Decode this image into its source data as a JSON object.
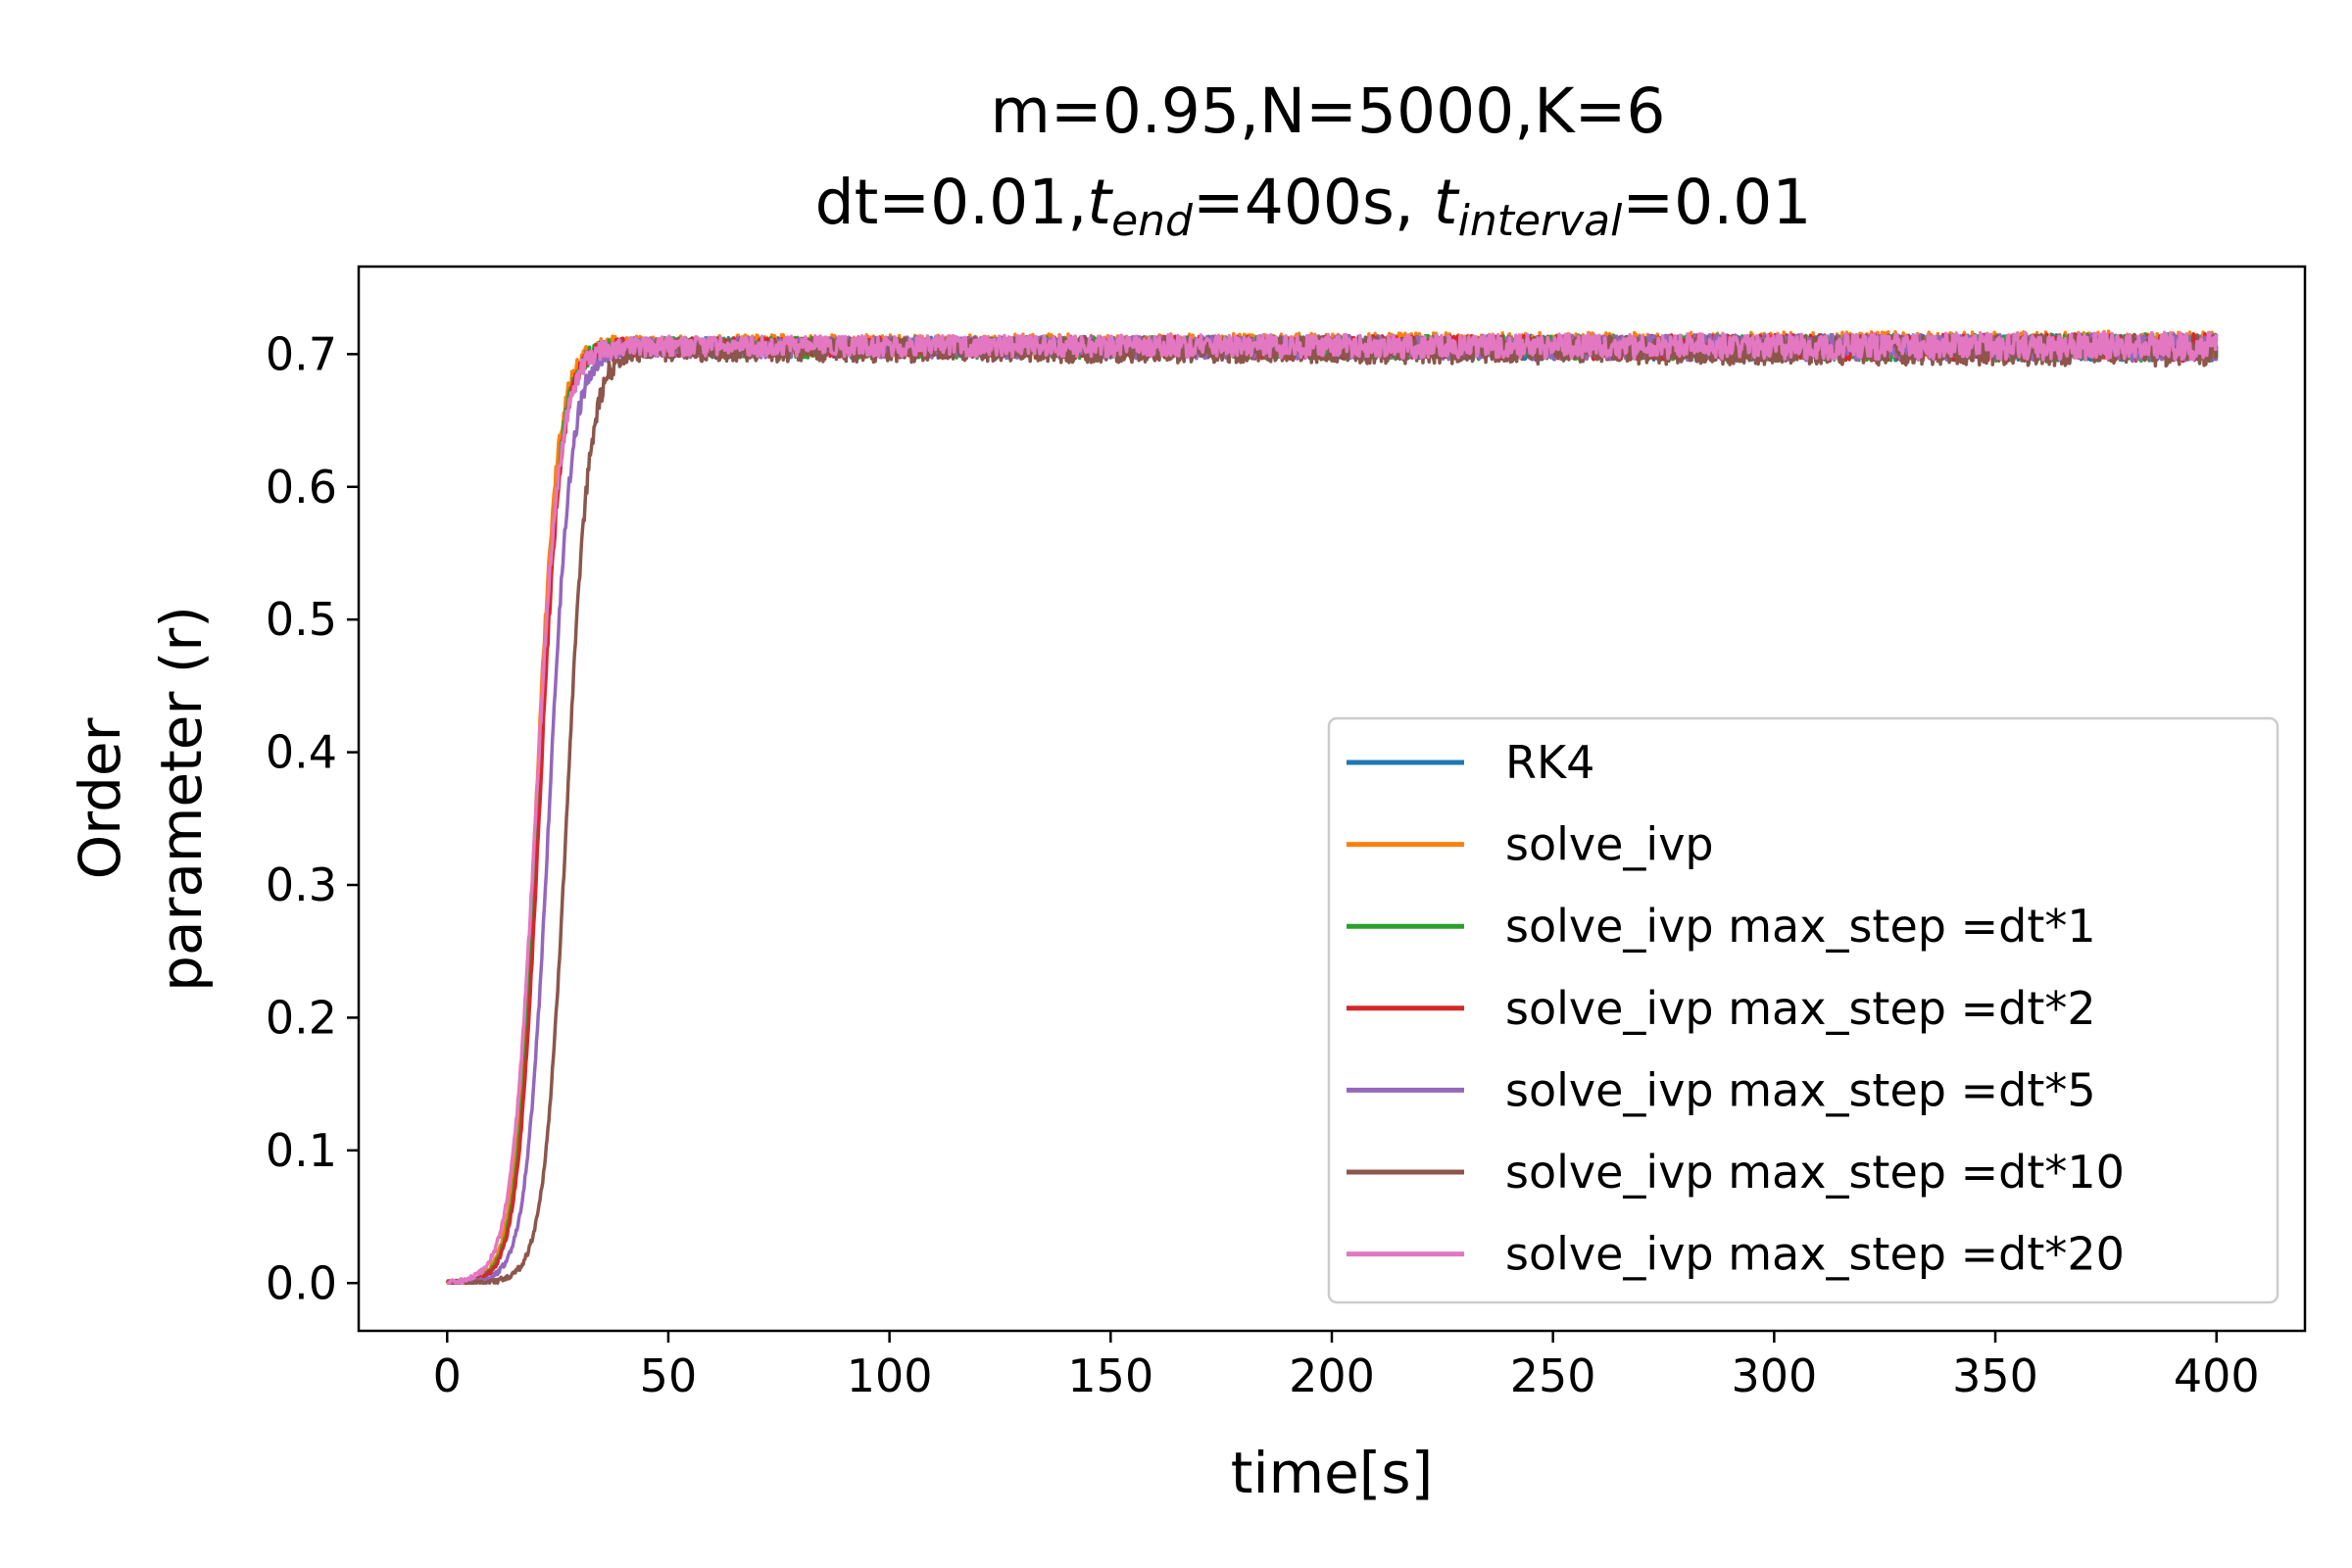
{
  "chart_data": {
    "type": "line",
    "title_line1": "m=0.95,N=5000,K=6",
    "title_line2": {
      "dt": "dt=0.01,",
      "t_end_var": "t",
      "t_end_sub": "end",
      "t_end_val": "=400s, ",
      "t_interval_var": "t",
      "t_interval_sub": "interval",
      "t_interval_val": "=0.01"
    },
    "xlabel": "time[s]",
    "ylabel_line1": "Order",
    "ylabel_line2": "parameter (r)",
    "xlim": [
      -20,
      420
    ],
    "ylim": [
      -0.036,
      0.766
    ],
    "xticks": [
      0,
      50,
      100,
      150,
      200,
      250,
      300,
      350,
      400
    ],
    "xtick_labels": [
      "0",
      "50",
      "100",
      "150",
      "200",
      "250",
      "300",
      "350",
      "400"
    ],
    "yticks": [
      0.0,
      0.1,
      0.2,
      0.3,
      0.4,
      0.5,
      0.6,
      0.7
    ],
    "ytick_labels": [
      "0.0",
      "0.1",
      "0.2",
      "0.3",
      "0.4",
      "0.5",
      "0.6",
      "0.7"
    ],
    "legend_position": "lower-right",
    "grid": false,
    "series": [
      {
        "name": "RK4",
        "color": "#1f77b4",
        "t_half": 20.5,
        "width": 2.5,
        "plateau": 0.705,
        "noise": 0.007
      },
      {
        "name": "solve_ivp",
        "color": "#ff7f0e",
        "t_half": 20.0,
        "width": 2.5,
        "plateau": 0.707,
        "noise": 0.007
      },
      {
        "name": "solve_ivp max_step =dt*1",
        "color": "#2ca02c",
        "t_half": 20.5,
        "width": 2.5,
        "plateau": 0.705,
        "noise": 0.007
      },
      {
        "name": "solve_ivp max_step =dt*2",
        "color": "#d62728",
        "t_half": 20.8,
        "width": 2.5,
        "plateau": 0.705,
        "noise": 0.007
      },
      {
        "name": "solve_ivp max_step =dt*5",
        "color": "#9467bd",
        "t_half": 23.0,
        "width": 2.6,
        "plateau": 0.705,
        "noise": 0.007
      },
      {
        "name": "solve_ivp max_step =dt*10",
        "color": "#8c564b",
        "t_half": 27.0,
        "width": 2.6,
        "plateau": 0.703,
        "noise": 0.008
      },
      {
        "name": "solve_ivp max_step =dt*20",
        "color": "#e377c2",
        "t_half": 20.0,
        "width": 2.8,
        "plateau": 0.706,
        "noise": 0.007
      }
    ]
  }
}
